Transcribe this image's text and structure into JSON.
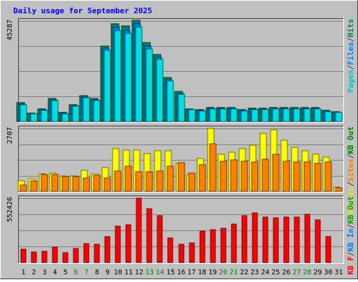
{
  "chart_data": [
    {
      "type": "bar",
      "title": "Daily usage for September 2025",
      "panel": "top",
      "max_label": "45287",
      "ylim": [
        0,
        45287
      ],
      "categories": [
        "1",
        "2",
        "3",
        "4",
        "5",
        "6",
        "7",
        "8",
        "9",
        "10",
        "11",
        "12",
        "13",
        "14",
        "15",
        "16",
        "17",
        "18",
        "19",
        "20",
        "21",
        "22",
        "23",
        "24",
        "25",
        "26",
        "27",
        "28",
        "29",
        "30",
        "31"
      ],
      "series": [
        {
          "name": "Hits",
          "color": "#00805c",
          "values": [
            8400,
            3900,
            5800,
            10500,
            4000,
            7600,
            11600,
            10300,
            34000,
            44000,
            43200,
            45600,
            35600,
            30300,
            19800,
            13400,
            5800,
            5200,
            6300,
            6300,
            6300,
            5200,
            6100,
            6100,
            6400,
            6400,
            6400,
            6400,
            6200,
            5000,
            4500
          ]
        },
        {
          "name": "Files",
          "color": "#0080ff",
          "values": [
            7800,
            3600,
            5400,
            9800,
            3700,
            7200,
            11100,
            9900,
            33000,
            42500,
            41000,
            44000,
            34000,
            29000,
            19000,
            12700,
            5500,
            4900,
            6000,
            6000,
            5900,
            4900,
            5800,
            5800,
            6000,
            6000,
            6000,
            6000,
            5900,
            4700,
            4200
          ]
        },
        {
          "name": "Pages",
          "color": "#00e0e0",
          "values": [
            7500,
            3400,
            5100,
            9400,
            3500,
            6900,
            10700,
            9500,
            32000,
            41000,
            39500,
            42500,
            32800,
            28000,
            18300,
            12200,
            5200,
            4700,
            5700,
            5700,
            5600,
            4700,
            5500,
            5500,
            5700,
            5700,
            5700,
            5700,
            5600,
            4500,
            4000
          ]
        }
      ],
      "side_legend": [
        "Pages",
        "/",
        "Files",
        "/",
        "Hits"
      ],
      "legend_colors": [
        "#00c8c8",
        "#404040",
        "#0080ff",
        "#404040",
        "#008060"
      ]
    },
    {
      "type": "bar",
      "panel": "middle",
      "max_label": "2707",
      "ylim": [
        0,
        2707
      ],
      "series": [
        {
          "name": "Visits",
          "color": "#ffff00",
          "values": [
            450,
            550,
            750,
            780,
            650,
            650,
            900,
            750,
            1020,
            1820,
            1760,
            1780,
            1620,
            1730,
            1750,
            1190,
            720,
            1400,
            2707,
            1600,
            1690,
            1820,
            1980,
            2500,
            2660,
            2190,
            1890,
            1750,
            1600,
            1460,
            180
          ]
        },
        {
          "name": "Sites",
          "color": "#ff8000",
          "values": [
            280,
            450,
            710,
            730,
            630,
            630,
            570,
            680,
            560,
            860,
            1090,
            830,
            840,
            870,
            1080,
            1230,
            770,
            1150,
            2040,
            1290,
            1350,
            1280,
            1270,
            1370,
            1590,
            1280,
            1250,
            1270,
            1210,
            1250,
            140
          ]
        }
      ],
      "side_legend": [
        "Visits",
        "/",
        "Sites",
        "/",
        "KB Out"
      ],
      "legend_colors": [
        "#e8e800",
        "#404040",
        "#ff8000",
        "#404040",
        "#008000"
      ]
    },
    {
      "type": "bar",
      "panel": "bottom",
      "max_label": "552426",
      "ylim": [
        0,
        552426
      ],
      "series": [
        {
          "name": "KB F",
          "color": "#ff0000",
          "values": [
            115000,
            88000,
            95000,
            135000,
            83000,
            118000,
            162000,
            155000,
            225000,
            310000,
            325000,
            552426,
            460000,
            400000,
            210000,
            155000,
            166000,
            272000,
            284000,
            295000,
            328000,
            404000,
            427000,
            388000,
            385000,
            388000,
            390000,
            413000,
            366000,
            220000,
            0
          ]
        }
      ],
      "side_legend": [
        "KB F",
        "/",
        "KB In",
        "/",
        "KB Out"
      ],
      "legend_colors": [
        "#ff0000",
        "#404040",
        "#0080ff",
        "#404040",
        "#00a000"
      ]
    }
  ],
  "x_axis": {
    "labels": [
      "1",
      "2",
      "3",
      "4",
      "5",
      "6",
      "7",
      "8",
      "9",
      "10",
      "11",
      "12",
      "13",
      "14",
      "15",
      "16",
      "17",
      "18",
      "19",
      "20",
      "21",
      "22",
      "23",
      "24",
      "25",
      "26",
      "27",
      "28",
      "29",
      "30",
      "31"
    ],
    "weekend_days": [
      6,
      7,
      13,
      14,
      20,
      21,
      27,
      28
    ],
    "color_weekday": "#000000",
    "color_weekend": "#008000"
  },
  "colors": {
    "title": "#0000ff",
    "background": "#c0c0c0",
    "plot": "#c0c0c0",
    "grid": "#808080"
  }
}
